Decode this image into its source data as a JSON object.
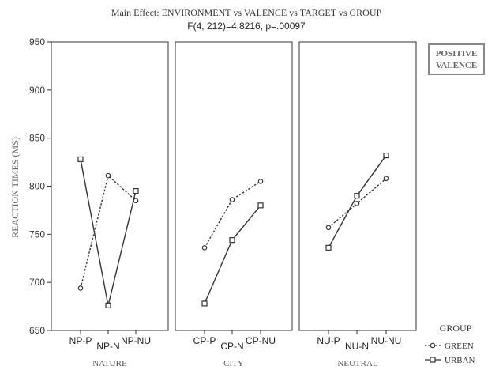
{
  "chart_data": {
    "type": "line",
    "title": "Main Effect: ENVIRONMENT vs VALENCE vs TARGET vs GROUP",
    "subtitle": "F(4, 212)=4.8216, p=.00097",
    "ylabel": "REACTION TIMES (MS)",
    "ylim": [
      650,
      950
    ],
    "yticks": [
      "650",
      "700",
      "750",
      "800",
      "850",
      "900",
      "950"
    ],
    "annotation": [
      "POSITIVE",
      "VALENCE"
    ],
    "legend_title": "GROUP",
    "legend_placement": "bottom-right",
    "series_styles": {
      "GREEN": {
        "marker": "circle",
        "dash": "dotted",
        "color": "#333333"
      },
      "URBAN": {
        "marker": "square",
        "dash": "solid",
        "color": "#333333"
      }
    },
    "panels": [
      {
        "name": "NATURE",
        "categories": [
          "NP-P",
          "NP-N",
          "NP-NU"
        ],
        "series": [
          {
            "name": "GREEN",
            "values": [
              694,
              811,
              785
            ]
          },
          {
            "name": "URBAN",
            "values": [
              828,
              676,
              795
            ]
          }
        ]
      },
      {
        "name": "CITY",
        "categories": [
          "CP-P",
          "CP-N",
          "CP-NU"
        ],
        "series": [
          {
            "name": "GREEN",
            "values": [
              736,
              786,
              805
            ]
          },
          {
            "name": "URBAN",
            "values": [
              678,
              744,
              780
            ]
          }
        ]
      },
      {
        "name": "NEUTRAL",
        "categories": [
          "NU-P",
          "NU-N",
          "NU-NU"
        ],
        "series": [
          {
            "name": "GREEN",
            "values": [
              757,
              782,
              808
            ]
          },
          {
            "name": "URBAN",
            "values": [
              736,
              790,
              832
            ]
          }
        ]
      }
    ]
  }
}
